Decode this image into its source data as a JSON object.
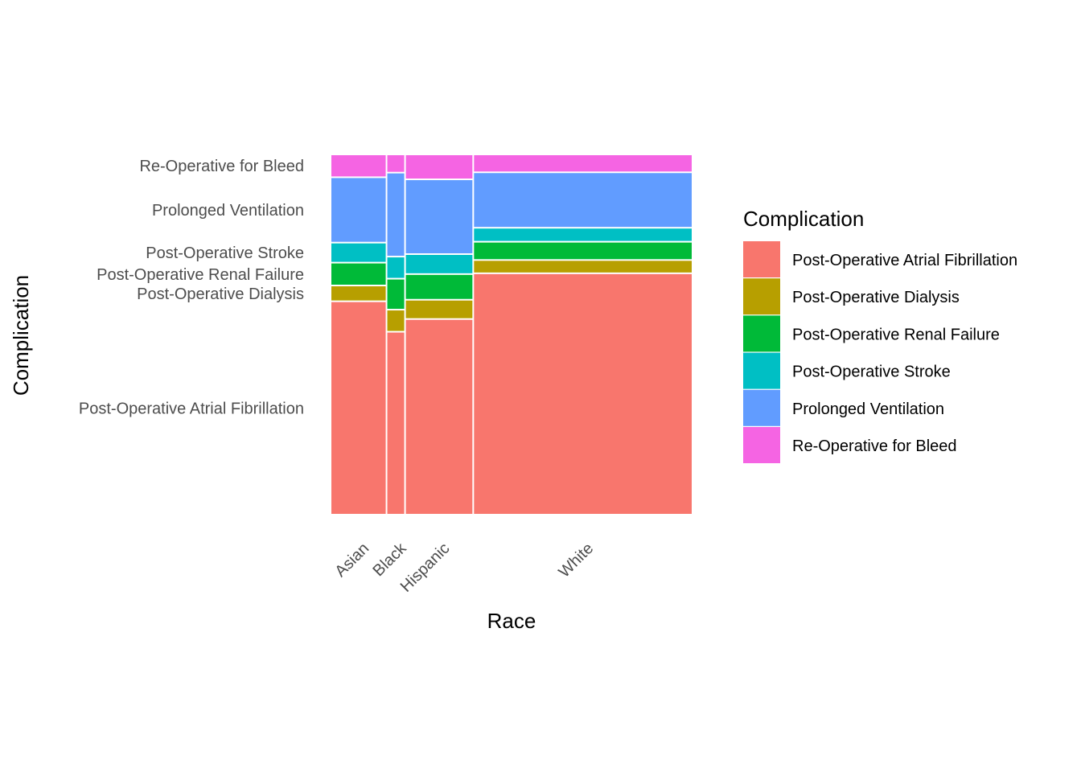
{
  "chart_data": {
    "type": "mosaic",
    "xlabel": "Race",
    "ylabel": "Complication",
    "categories": [
      "Asian",
      "Black",
      "Hispanic",
      "White"
    ],
    "category_widths": [
      0.151,
      0.047,
      0.185,
      0.605
    ],
    "complications": [
      "Post-Operative Atrial Fibrillation",
      "Post-Operative Dialysis",
      "Post-Operative Renal Failure",
      "Post-Operative Stroke",
      "Prolonged Ventilation",
      "Re-Operative for Bleed"
    ],
    "series": [
      {
        "name": "Post-Operative Atrial Fibrillation",
        "values": [
          0.598,
          0.513,
          0.549,
          0.677
        ]
      },
      {
        "name": "Post-Operative Dialysis",
        "values": [
          0.04,
          0.058,
          0.05,
          0.033
        ]
      },
      {
        "name": "Post-Operative Renal Failure",
        "values": [
          0.06,
          0.083,
          0.068,
          0.047
        ]
      },
      {
        "name": "Post-Operative Stroke",
        "values": [
          0.052,
          0.058,
          0.052,
          0.035
        ]
      },
      {
        "name": "Prolonged Ventilation",
        "values": [
          0.18,
          0.233,
          0.207,
          0.152
        ]
      },
      {
        "name": "Re-Operative for Bleed",
        "values": [
          0.06,
          0.047,
          0.066,
          0.046
        ]
      }
    ],
    "y_tick_labels": [
      "Re-Operative for Bleed",
      "Prolonged Ventilation",
      "Post-Operative Stroke",
      "Post-Operative Renal Failure",
      "Post-Operative Dialysis",
      "Post-Operative Atrial Fibrillation"
    ],
    "legend": {
      "title": "Complication",
      "placement": "right",
      "entries": [
        {
          "label": "Post-Operative Atrial Fibrillation",
          "color": "#F8766D"
        },
        {
          "label": "Post-Operative Dialysis",
          "color": "#B79F00"
        },
        {
          "label": "Post-Operative Renal Failure",
          "color": "#00BA38"
        },
        {
          "label": "Post-Operative Stroke",
          "color": "#00BFC4"
        },
        {
          "label": "Prolonged Ventilation",
          "color": "#619CFF"
        },
        {
          "label": "Re-Operative for Bleed",
          "color": "#F564E3"
        }
      ]
    },
    "grid": false
  }
}
